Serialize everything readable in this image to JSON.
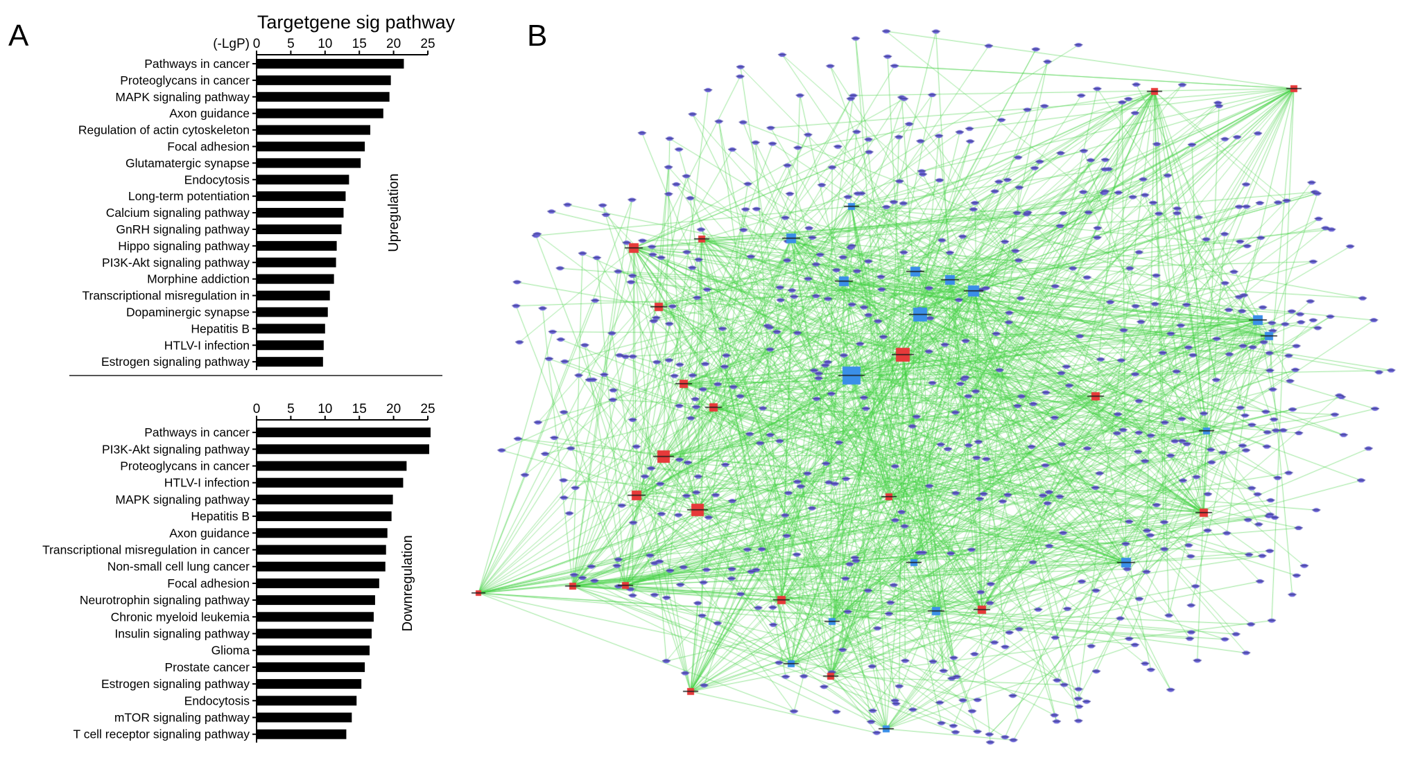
{
  "panel_a": {
    "label": "A"
  },
  "panel_b": {
    "label": "B",
    "network": {
      "edge_color": "#3fcf3f",
      "up_mirna_color": "#e63a3a",
      "down_mirna_color": "#3a8fe8",
      "gene_node_color": "#6a63d6"
    }
  },
  "chart_data": [
    {
      "type": "bar",
      "orientation": "horizontal",
      "title": "Targetgene sig pathway",
      "xlabel": "(-LgP)",
      "group_label": "Upregulation",
      "xlim": [
        0,
        25
      ],
      "xticks": [
        0,
        5,
        10,
        15,
        20,
        25
      ],
      "bar_color": "#000000",
      "categories": [
        "Pathways in cancer",
        "Proteoglycans in cancer",
        "MAPK signaling pathway",
        "Axon guidance",
        "Regulation of actin cytoskeleton",
        "Focal adhesion",
        "Glutamatergic synapse",
        "Endocytosis",
        "Long-term potentiation",
        "Calcium signaling pathway",
        "GnRH signaling pathway",
        "Hippo signaling pathway",
        "PI3K-Akt signaling pathway",
        "Morphine addiction",
        "Transcriptional misregulation in",
        "Dopaminergic synapse",
        "Hepatitis B",
        "HTLV-I infection",
        "Estrogen signaling pathway"
      ],
      "values": [
        21.5,
        19.6,
        19.4,
        18.5,
        16.6,
        15.8,
        15.2,
        13.5,
        13.0,
        12.7,
        12.4,
        11.7,
        11.6,
        11.3,
        10.7,
        10.4,
        10.0,
        9.8,
        9.7
      ]
    },
    {
      "type": "bar",
      "orientation": "horizontal",
      "group_label": "Downregulation",
      "xlim": [
        0,
        25
      ],
      "xticks": [
        0,
        5,
        10,
        15,
        20,
        25
      ],
      "bar_color": "#000000",
      "categories": [
        "Pathways in cancer",
        "PI3K-Akt signaling pathway",
        "Proteoglycans in cancer",
        "HTLV-I infection",
        "MAPK signaling pathway",
        "Hepatitis B",
        "Axon guidance",
        "Transcriptional misregulation in cancer",
        "Non-small cell lung cancer",
        "Focal adhesion",
        "Neurotrophin signaling pathway",
        "Chronic myeloid leukemia",
        "Insulin signaling pathway",
        "Glioma",
        "Prostate cancer",
        "Estrogen signaling pathway",
        "Endocytosis",
        "mTOR signaling pathway",
        "T cell receptor signaling pathway"
      ],
      "values": [
        25.4,
        25.2,
        21.9,
        21.4,
        19.9,
        19.7,
        19.1,
        18.9,
        18.8,
        17.9,
        17.3,
        17.1,
        16.8,
        16.5,
        15.8,
        15.3,
        14.6,
        13.9,
        13.1
      ]
    }
  ]
}
